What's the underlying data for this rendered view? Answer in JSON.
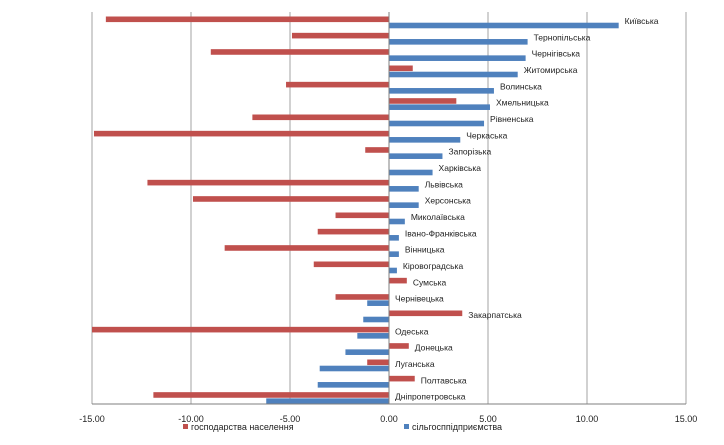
{
  "chart_data": {
    "type": "bar",
    "orientation": "horizontal",
    "title": "",
    "xlabel": "",
    "ylabel": "",
    "xlim": [
      -15,
      15
    ],
    "x_ticks": [
      "-15.00",
      "-10.00",
      "-5.00",
      "0.00",
      "5.00",
      "10.00",
      "15.00"
    ],
    "grid": true,
    "legend_position": "bottom",
    "categories": [
      "Київська",
      "Тернопільська",
      "Чернігівська",
      "Житомирська",
      "Волинська",
      "Хмельницька",
      "Рівненська",
      "Черкаська",
      "Запорізька",
      "Харківська",
      "Львівська",
      "Херсонська",
      "Миколаївська",
      "Івано-Франківська",
      "Вінницька",
      "Кіровоградська",
      "Сумська",
      "Чернівецька",
      "Закарпатська",
      "Одеська",
      "Донецька",
      "Луганська",
      "Полтавська",
      "Дніпропетровська"
    ],
    "series": [
      {
        "name": "господарства населення",
        "color": "#C0504D",
        "values": [
          -14.3,
          -4.9,
          -9.0,
          1.2,
          -5.2,
          3.4,
          -6.9,
          -14.9,
          -1.2,
          0.0,
          -12.2,
          -9.9,
          -2.7,
          -3.6,
          -8.3,
          -3.8,
          0.9,
          -2.7,
          3.7,
          -15.0,
          1.0,
          -1.1,
          1.3,
          -11.9
        ]
      },
      {
        "name": "сільгосппідприємства",
        "color": "#4F81BD",
        "values": [
          11.6,
          7.0,
          6.9,
          6.5,
          5.3,
          5.1,
          4.8,
          3.6,
          2.7,
          2.2,
          1.5,
          1.5,
          0.8,
          0.5,
          0.5,
          0.4,
          0.0,
          -1.1,
          -1.3,
          -1.6,
          -2.2,
          -3.5,
          -3.6,
          -6.2
        ]
      }
    ]
  }
}
